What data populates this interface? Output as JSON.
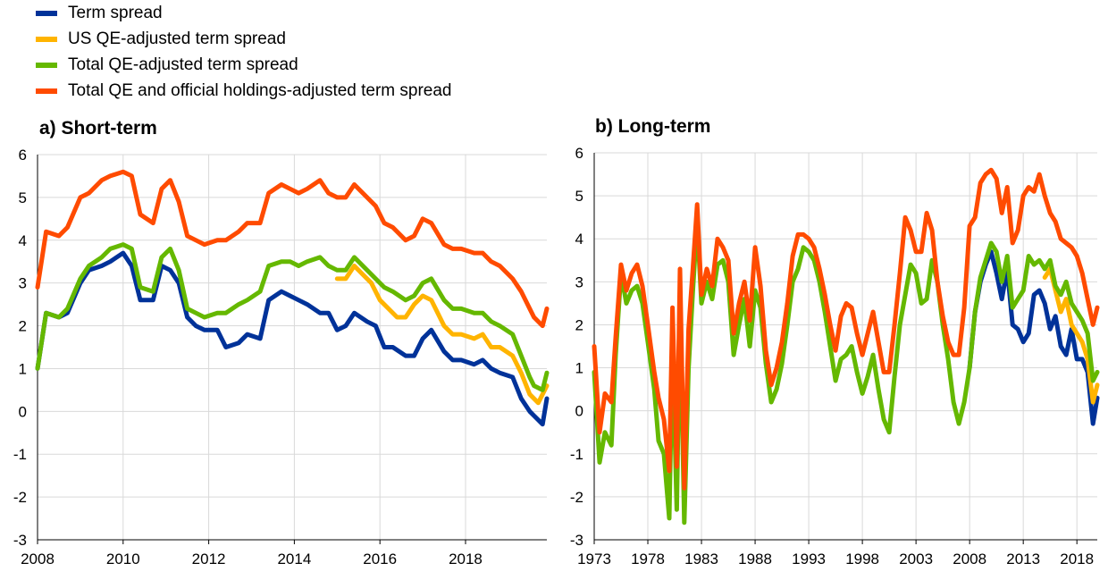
{
  "colors": {
    "term_spread": "#003299",
    "us_qe": "#ffb400",
    "total_qe": "#65b800",
    "official": "#ff4b00",
    "grid": "#d9d9d9",
    "axis": "#000000"
  },
  "chart_data": [
    {
      "type": "line",
      "title": "a) Short-term",
      "xlabel": "",
      "ylabel": "",
      "x_ticks": [
        "2008",
        "2010",
        "2012",
        "2014",
        "2016",
        "2018"
      ],
      "x_range": [
        2008.0,
        2019.9
      ],
      "ylim": [
        -3,
        6
      ],
      "y_ticks": [
        "-3",
        "-2",
        "-1",
        "0",
        "1",
        "2",
        "3",
        "4",
        "5",
        "6"
      ],
      "grid": "horizontal and vertical",
      "legend_position": "top-left",
      "series": [
        {
          "name": "Term spread",
          "color_key": "term_spread",
          "x": [
            2008.0,
            2008.2,
            2008.5,
            2008.7,
            2009.0,
            2009.2,
            2009.5,
            2009.7,
            2010.0,
            2010.2,
            2010.4,
            2010.7,
            2010.9,
            2011.1,
            2011.3,
            2011.5,
            2011.7,
            2011.9,
            2012.2,
            2012.4,
            2012.7,
            2012.9,
            2013.2,
            2013.4,
            2013.7,
            2013.9,
            2014.1,
            2014.3,
            2014.6,
            2014.8,
            2015.0,
            2015.2,
            2015.4,
            2015.7,
            2015.9,
            2016.1,
            2016.3,
            2016.6,
            2016.8,
            2017.0,
            2017.2,
            2017.5,
            2017.7,
            2017.9,
            2018.2,
            2018.4,
            2018.6,
            2018.8,
            2019.1,
            2019.3,
            2019.5,
            2019.6,
            2019.8,
            2019.9
          ],
          "y": [
            1.0,
            2.3,
            2.2,
            2.3,
            3.0,
            3.3,
            3.4,
            3.5,
            3.7,
            3.4,
            2.6,
            2.6,
            3.4,
            3.3,
            3.0,
            2.2,
            2.0,
            1.9,
            1.9,
            1.5,
            1.6,
            1.8,
            1.7,
            2.6,
            2.8,
            2.7,
            2.6,
            2.5,
            2.3,
            2.3,
            1.9,
            2.0,
            2.3,
            2.1,
            2.0,
            1.5,
            1.5,
            1.3,
            1.3,
            1.7,
            1.9,
            1.4,
            1.2,
            1.2,
            1.1,
            1.2,
            1.0,
            0.9,
            0.8,
            0.3,
            0.0,
            -0.1,
            -0.3,
            0.3
          ]
        },
        {
          "name": "US QE-adjusted term spread",
          "color_key": "us_qe",
          "x": [
            2015.0,
            2015.2,
            2015.4,
            2015.6,
            2015.8,
            2016.0,
            2016.2,
            2016.4,
            2016.6,
            2016.8,
            2017.0,
            2017.2,
            2017.5,
            2017.7,
            2017.9,
            2018.2,
            2018.4,
            2018.6,
            2018.8,
            2019.1,
            2019.3,
            2019.5,
            2019.7,
            2019.9
          ],
          "y": [
            3.1,
            3.1,
            3.4,
            3.2,
            3.0,
            2.6,
            2.4,
            2.2,
            2.2,
            2.5,
            2.7,
            2.6,
            2.0,
            1.8,
            1.8,
            1.7,
            1.8,
            1.5,
            1.5,
            1.3,
            0.9,
            0.4,
            0.2,
            0.6
          ]
        },
        {
          "name": "Total QE-adjusted term spread",
          "color_key": "total_qe",
          "x": [
            2008.0,
            2008.2,
            2008.5,
            2008.7,
            2009.0,
            2009.2,
            2009.5,
            2009.7,
            2010.0,
            2010.2,
            2010.4,
            2010.7,
            2010.9,
            2011.1,
            2011.3,
            2011.5,
            2011.7,
            2011.9,
            2012.2,
            2012.4,
            2012.7,
            2012.9,
            2013.2,
            2013.4,
            2013.7,
            2013.9,
            2014.1,
            2014.3,
            2014.6,
            2014.8,
            2015.0,
            2015.2,
            2015.4,
            2015.7,
            2015.9,
            2016.1,
            2016.3,
            2016.6,
            2016.8,
            2017.0,
            2017.2,
            2017.5,
            2017.7,
            2017.9,
            2018.2,
            2018.4,
            2018.6,
            2018.8,
            2019.1,
            2019.3,
            2019.5,
            2019.6,
            2019.8,
            2019.9
          ],
          "y": [
            1.0,
            2.3,
            2.2,
            2.4,
            3.1,
            3.4,
            3.6,
            3.8,
            3.9,
            3.8,
            2.9,
            2.8,
            3.6,
            3.8,
            3.3,
            2.4,
            2.3,
            2.2,
            2.3,
            2.3,
            2.5,
            2.6,
            2.8,
            3.4,
            3.5,
            3.5,
            3.4,
            3.5,
            3.6,
            3.4,
            3.3,
            3.3,
            3.6,
            3.3,
            3.1,
            2.9,
            2.8,
            2.6,
            2.7,
            3.0,
            3.1,
            2.6,
            2.4,
            2.4,
            2.3,
            2.3,
            2.1,
            2.0,
            1.8,
            1.3,
            0.8,
            0.6,
            0.5,
            0.9
          ]
        },
        {
          "name": "Total QE and official holdings-adjusted term spread",
          "color_key": "official",
          "x": [
            2008.0,
            2008.2,
            2008.5,
            2008.7,
            2009.0,
            2009.2,
            2009.5,
            2009.7,
            2010.0,
            2010.2,
            2010.4,
            2010.7,
            2010.9,
            2011.1,
            2011.3,
            2011.5,
            2011.7,
            2011.9,
            2012.2,
            2012.4,
            2012.7,
            2012.9,
            2013.2,
            2013.4,
            2013.7,
            2013.9,
            2014.1,
            2014.3,
            2014.6,
            2014.8,
            2015.0,
            2015.2,
            2015.4,
            2015.7,
            2015.9,
            2016.1,
            2016.3,
            2016.6,
            2016.8,
            2017.0,
            2017.2,
            2017.5,
            2017.7,
            2017.9,
            2018.2,
            2018.4,
            2018.6,
            2018.8,
            2019.1,
            2019.3,
            2019.5,
            2019.6,
            2019.8,
            2019.9
          ],
          "y": [
            2.9,
            4.2,
            4.1,
            4.3,
            5.0,
            5.1,
            5.4,
            5.5,
            5.6,
            5.5,
            4.6,
            4.4,
            5.2,
            5.4,
            4.9,
            4.1,
            4.0,
            3.9,
            4.0,
            4.0,
            4.2,
            4.4,
            4.4,
            5.1,
            5.3,
            5.2,
            5.1,
            5.2,
            5.4,
            5.1,
            5.0,
            5.0,
            5.3,
            5.0,
            4.8,
            4.4,
            4.3,
            4.0,
            4.1,
            4.5,
            4.4,
            3.9,
            3.8,
            3.8,
            3.7,
            3.7,
            3.5,
            3.4,
            3.1,
            2.8,
            2.4,
            2.2,
            2.0,
            2.4
          ]
        }
      ]
    },
    {
      "type": "line",
      "title": "b) Long-term",
      "xlabel": "",
      "ylabel": "",
      "x_ticks": [
        "1973",
        "1978",
        "1983",
        "1988",
        "1993",
        "1998",
        "2003",
        "2008",
        "2013",
        "2018"
      ],
      "x_range": [
        1973.0,
        2019.9
      ],
      "ylim": [
        -3,
        6
      ],
      "y_ticks": [
        "-3",
        "-2",
        "-1",
        "0",
        "1",
        "2",
        "3",
        "4",
        "5",
        "6"
      ],
      "grid": "horizontal and vertical",
      "series": [
        {
          "name": "Term spread",
          "color_key": "term_spread",
          "x": [
            2008.0,
            2008.5,
            2009.0,
            2009.5,
            2010.0,
            2010.5,
            2011.0,
            2011.5,
            2012.0,
            2012.5,
            2013.0,
            2013.5,
            2014.0,
            2014.5,
            2015.0,
            2015.5,
            2016.0,
            2016.5,
            2017.0,
            2017.5,
            2018.0,
            2018.5,
            2019.0,
            2019.5,
            2019.9
          ],
          "y": [
            1.0,
            2.3,
            3.0,
            3.4,
            3.7,
            3.2,
            2.6,
            3.3,
            2.0,
            1.9,
            1.6,
            1.8,
            2.7,
            2.8,
            2.5,
            1.9,
            2.2,
            1.5,
            1.3,
            1.9,
            1.2,
            1.2,
            0.9,
            -0.3,
            0.3
          ]
        },
        {
          "name": "US QE-adjusted term spread",
          "color_key": "us_qe",
          "x": [
            2015.0,
            2015.5,
            2016.0,
            2016.5,
            2017.0,
            2017.5,
            2018.0,
            2018.5,
            2019.0,
            2019.5,
            2019.9
          ],
          "y": [
            3.1,
            3.3,
            2.8,
            2.3,
            2.6,
            2.0,
            1.8,
            1.6,
            1.2,
            0.2,
            0.6
          ]
        },
        {
          "name": "Total QE-adjusted term spread",
          "color_key": "total_qe",
          "x": [
            1973.0,
            1973.5,
            1974.0,
            1974.6,
            1975.0,
            1975.5,
            1976.0,
            1976.5,
            1977.0,
            1977.5,
            1978.0,
            1978.6,
            1979.0,
            1979.5,
            1980.0,
            1980.3,
            1980.7,
            1981.0,
            1981.4,
            1981.8,
            1982.2,
            1982.6,
            1983.0,
            1983.5,
            1984.0,
            1984.5,
            1985.0,
            1985.5,
            1986.0,
            1986.5,
            1987.0,
            1987.5,
            1988.0,
            1988.5,
            1989.0,
            1989.5,
            1990.0,
            1990.5,
            1991.0,
            1991.5,
            1992.0,
            1992.5,
            1993.0,
            1993.5,
            1994.0,
            1994.5,
            1995.0,
            1995.5,
            1996.0,
            1996.5,
            1997.0,
            1997.5,
            1998.0,
            1998.5,
            1999.0,
            1999.5,
            2000.0,
            2000.5,
            2001.0,
            2001.5,
            2002.0,
            2002.5,
            2003.0,
            2003.5,
            2004.0,
            2004.5,
            2005.0,
            2005.5,
            2006.0,
            2006.5,
            2007.0,
            2007.5,
            2008.0,
            2008.5,
            2009.0,
            2009.5,
            2010.0,
            2010.5,
            2011.0,
            2011.5,
            2012.0,
            2012.5,
            2013.0,
            2013.5,
            2014.0,
            2014.5,
            2015.0,
            2015.5,
            2016.0,
            2016.5,
            2017.0,
            2017.5,
            2018.0,
            2018.5,
            2019.0,
            2019.5,
            2019.9
          ],
          "y": [
            0.9,
            -1.2,
            -0.5,
            -0.8,
            1.3,
            3.2,
            2.5,
            2.8,
            2.9,
            2.5,
            1.6,
            0.5,
            -0.7,
            -1.0,
            -2.5,
            1.5,
            -2.3,
            2.5,
            -2.6,
            1.0,
            2.8,
            4.4,
            2.5,
            3.0,
            2.6,
            3.4,
            3.5,
            3.0,
            1.3,
            2.0,
            2.6,
            1.5,
            2.8,
            2.4,
            1.1,
            0.2,
            0.5,
            1.1,
            2.0,
            3.0,
            3.3,
            3.8,
            3.7,
            3.5,
            3.0,
            2.3,
            1.5,
            0.7,
            1.2,
            1.3,
            1.5,
            0.9,
            0.4,
            0.8,
            1.3,
            0.5,
            -0.2,
            -0.5,
            0.8,
            2.0,
            2.7,
            3.4,
            3.2,
            2.5,
            2.6,
            3.5,
            3.0,
            2.0,
            1.2,
            0.2,
            -0.3,
            0.2,
            1.0,
            2.3,
            3.1,
            3.5,
            3.9,
            3.7,
            3.0,
            3.6,
            2.4,
            2.6,
            2.8,
            3.6,
            3.4,
            3.5,
            3.3,
            3.5,
            2.9,
            2.7,
            3.0,
            2.5,
            2.3,
            2.1,
            1.8,
            0.7,
            0.9
          ]
        },
        {
          "name": "Total QE and official holdings-adjusted term spread",
          "color_key": "official",
          "x": [
            1973.0,
            1973.5,
            1974.0,
            1974.6,
            1975.0,
            1975.5,
            1976.0,
            1976.5,
            1977.0,
            1977.5,
            1978.0,
            1978.6,
            1979.0,
            1979.5,
            1980.0,
            1980.3,
            1980.7,
            1981.0,
            1981.4,
            1981.8,
            1982.2,
            1982.6,
            1983.0,
            1983.5,
            1984.0,
            1984.5,
            1985.0,
            1985.5,
            1986.0,
            1986.5,
            1987.0,
            1987.5,
            1988.0,
            1988.5,
            1989.0,
            1989.5,
            1990.0,
            1990.5,
            1991.0,
            1991.5,
            1992.0,
            1992.5,
            1993.0,
            1993.5,
            1994.0,
            1994.5,
            1995.0,
            1995.5,
            1996.0,
            1996.5,
            1997.0,
            1997.5,
            1998.0,
            1998.5,
            1999.0,
            1999.5,
            2000.0,
            2000.5,
            2001.0,
            2001.5,
            2002.0,
            2002.5,
            2003.0,
            2003.5,
            2004.0,
            2004.5,
            2005.0,
            2005.5,
            2006.0,
            2006.5,
            2007.0,
            2007.5,
            2008.0,
            2008.5,
            2009.0,
            2009.5,
            2010.0,
            2010.5,
            2011.0,
            2011.5,
            2012.0,
            2012.5,
            2013.0,
            2013.5,
            2014.0,
            2014.5,
            2015.0,
            2015.5,
            2016.0,
            2016.5,
            2017.0,
            2017.5,
            2018.0,
            2018.5,
            2019.0,
            2019.5,
            2019.9
          ],
          "y": [
            1.5,
            -0.5,
            0.4,
            0.2,
            1.7,
            3.4,
            2.8,
            3.2,
            3.4,
            2.9,
            2.0,
            0.9,
            0.3,
            -0.2,
            -1.4,
            2.4,
            -1.3,
            3.3,
            -1.8,
            1.9,
            3.3,
            4.8,
            2.7,
            3.3,
            2.9,
            4.0,
            3.8,
            3.5,
            1.8,
            2.5,
            3.0,
            2.1,
            3.8,
            2.9,
            1.4,
            0.6,
            1.0,
            1.6,
            2.5,
            3.6,
            4.1,
            4.1,
            4.0,
            3.8,
            3.3,
            2.7,
            2.0,
            1.4,
            2.2,
            2.5,
            2.4,
            1.8,
            1.3,
            1.8,
            2.3,
            1.6,
            0.9,
            0.9,
            2.0,
            3.2,
            4.5,
            4.2,
            3.7,
            3.7,
            4.6,
            4.2,
            3.0,
            2.2,
            1.6,
            1.3,
            1.3,
            2.4,
            4.3,
            4.5,
            5.3,
            5.5,
            5.6,
            5.4,
            4.6,
            5.2,
            3.9,
            4.2,
            5.0,
            5.2,
            5.1,
            5.5,
            5.0,
            4.6,
            4.4,
            4.0,
            3.9,
            3.8,
            3.6,
            3.2,
            2.6,
            2.0,
            2.4
          ]
        }
      ]
    }
  ]
}
